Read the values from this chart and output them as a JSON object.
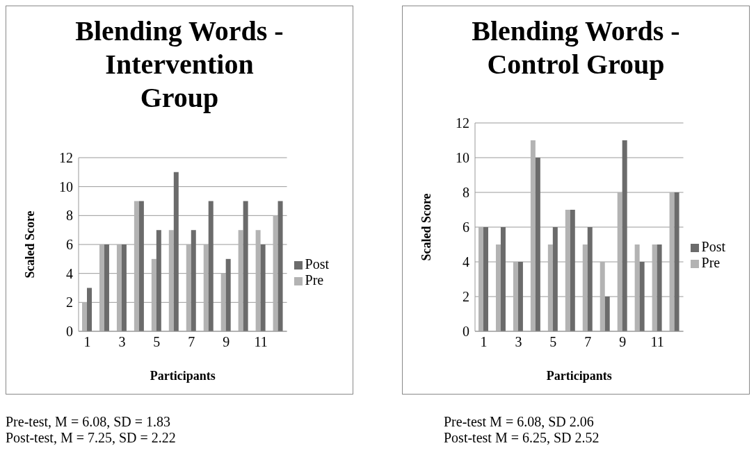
{
  "chart_data": [
    {
      "type": "bar",
      "title": "Blending Words - Intervention Group",
      "xlabel": "Participants",
      "ylabel": "Scaled Score",
      "categories": [
        "1",
        null,
        "3",
        null,
        "5",
        null,
        "7",
        null,
        "9",
        null,
        "11",
        null
      ],
      "series": [
        {
          "name": "Pre",
          "color": "#b3b3b3",
          "values": [
            2,
            6,
            6,
            9,
            5,
            7,
            6,
            6,
            4,
            7,
            7,
            8
          ]
        },
        {
          "name": "Post",
          "color": "#6b6b6b",
          "values": [
            3,
            6,
            6,
            9,
            7,
            11,
            7,
            9,
            5,
            9,
            6,
            9
          ]
        }
      ],
      "ylim": [
        0,
        12
      ],
      "yticks": [
        0,
        2,
        4,
        6,
        8,
        10,
        12
      ],
      "grid": "y",
      "legend": "right",
      "annotations": [
        "Pre-test, M = 6.08, SD = 1.83",
        "Post-test, M = 7.25, SD = 2.22"
      ]
    },
    {
      "type": "bar",
      "title": "Blending Words - Control Group",
      "xlabel": "Participants",
      "ylabel": "Scaled Score",
      "categories": [
        "1",
        null,
        "3",
        null,
        "5",
        null,
        "7",
        null,
        "9",
        null,
        "11",
        null
      ],
      "series": [
        {
          "name": "Pre",
          "color": "#b3b3b3",
          "values": [
            6,
            5,
            4,
            11,
            5,
            7,
            5,
            4,
            8,
            5,
            5,
            8
          ]
        },
        {
          "name": "Post",
          "color": "#6b6b6b",
          "values": [
            6,
            6,
            4,
            10,
            6,
            7,
            6,
            2,
            11,
            4,
            5,
            8
          ]
        }
      ],
      "ylim": [
        0,
        12
      ],
      "yticks": [
        0,
        2,
        4,
        6,
        8,
        10,
        12
      ],
      "grid": "y",
      "legend": "right",
      "annotations": [
        "Pre-test M = 6.08, SD 2.06",
        "Post-test M = 6.25, SD 2.52"
      ]
    }
  ]
}
